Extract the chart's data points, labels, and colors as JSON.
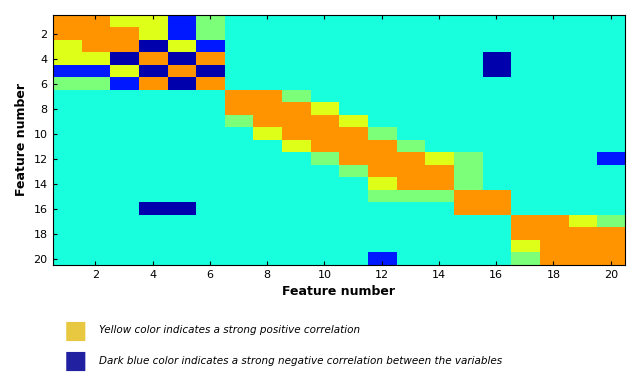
{
  "title": "",
  "xlabel": "Feature number",
  "ylabel": "Feature number",
  "n_features": 20,
  "xticks": [
    2,
    4,
    6,
    8,
    10,
    12,
    14,
    16,
    18,
    20
  ],
  "yticks": [
    2,
    4,
    6,
    8,
    10,
    12,
    14,
    16,
    18,
    20
  ],
  "colormap": "jet",
  "vmin": 0.0,
  "vmax": 1.0,
  "bg": 0.45,
  "legend_yellow_text": "Yellow color indicates a strong positive correlation",
  "legend_blue_text": "Dark blue color indicates a strong negative correlation between the variables",
  "legend_yellow_color": "#e8c840",
  "legend_blue_color": "#2020a0"
}
